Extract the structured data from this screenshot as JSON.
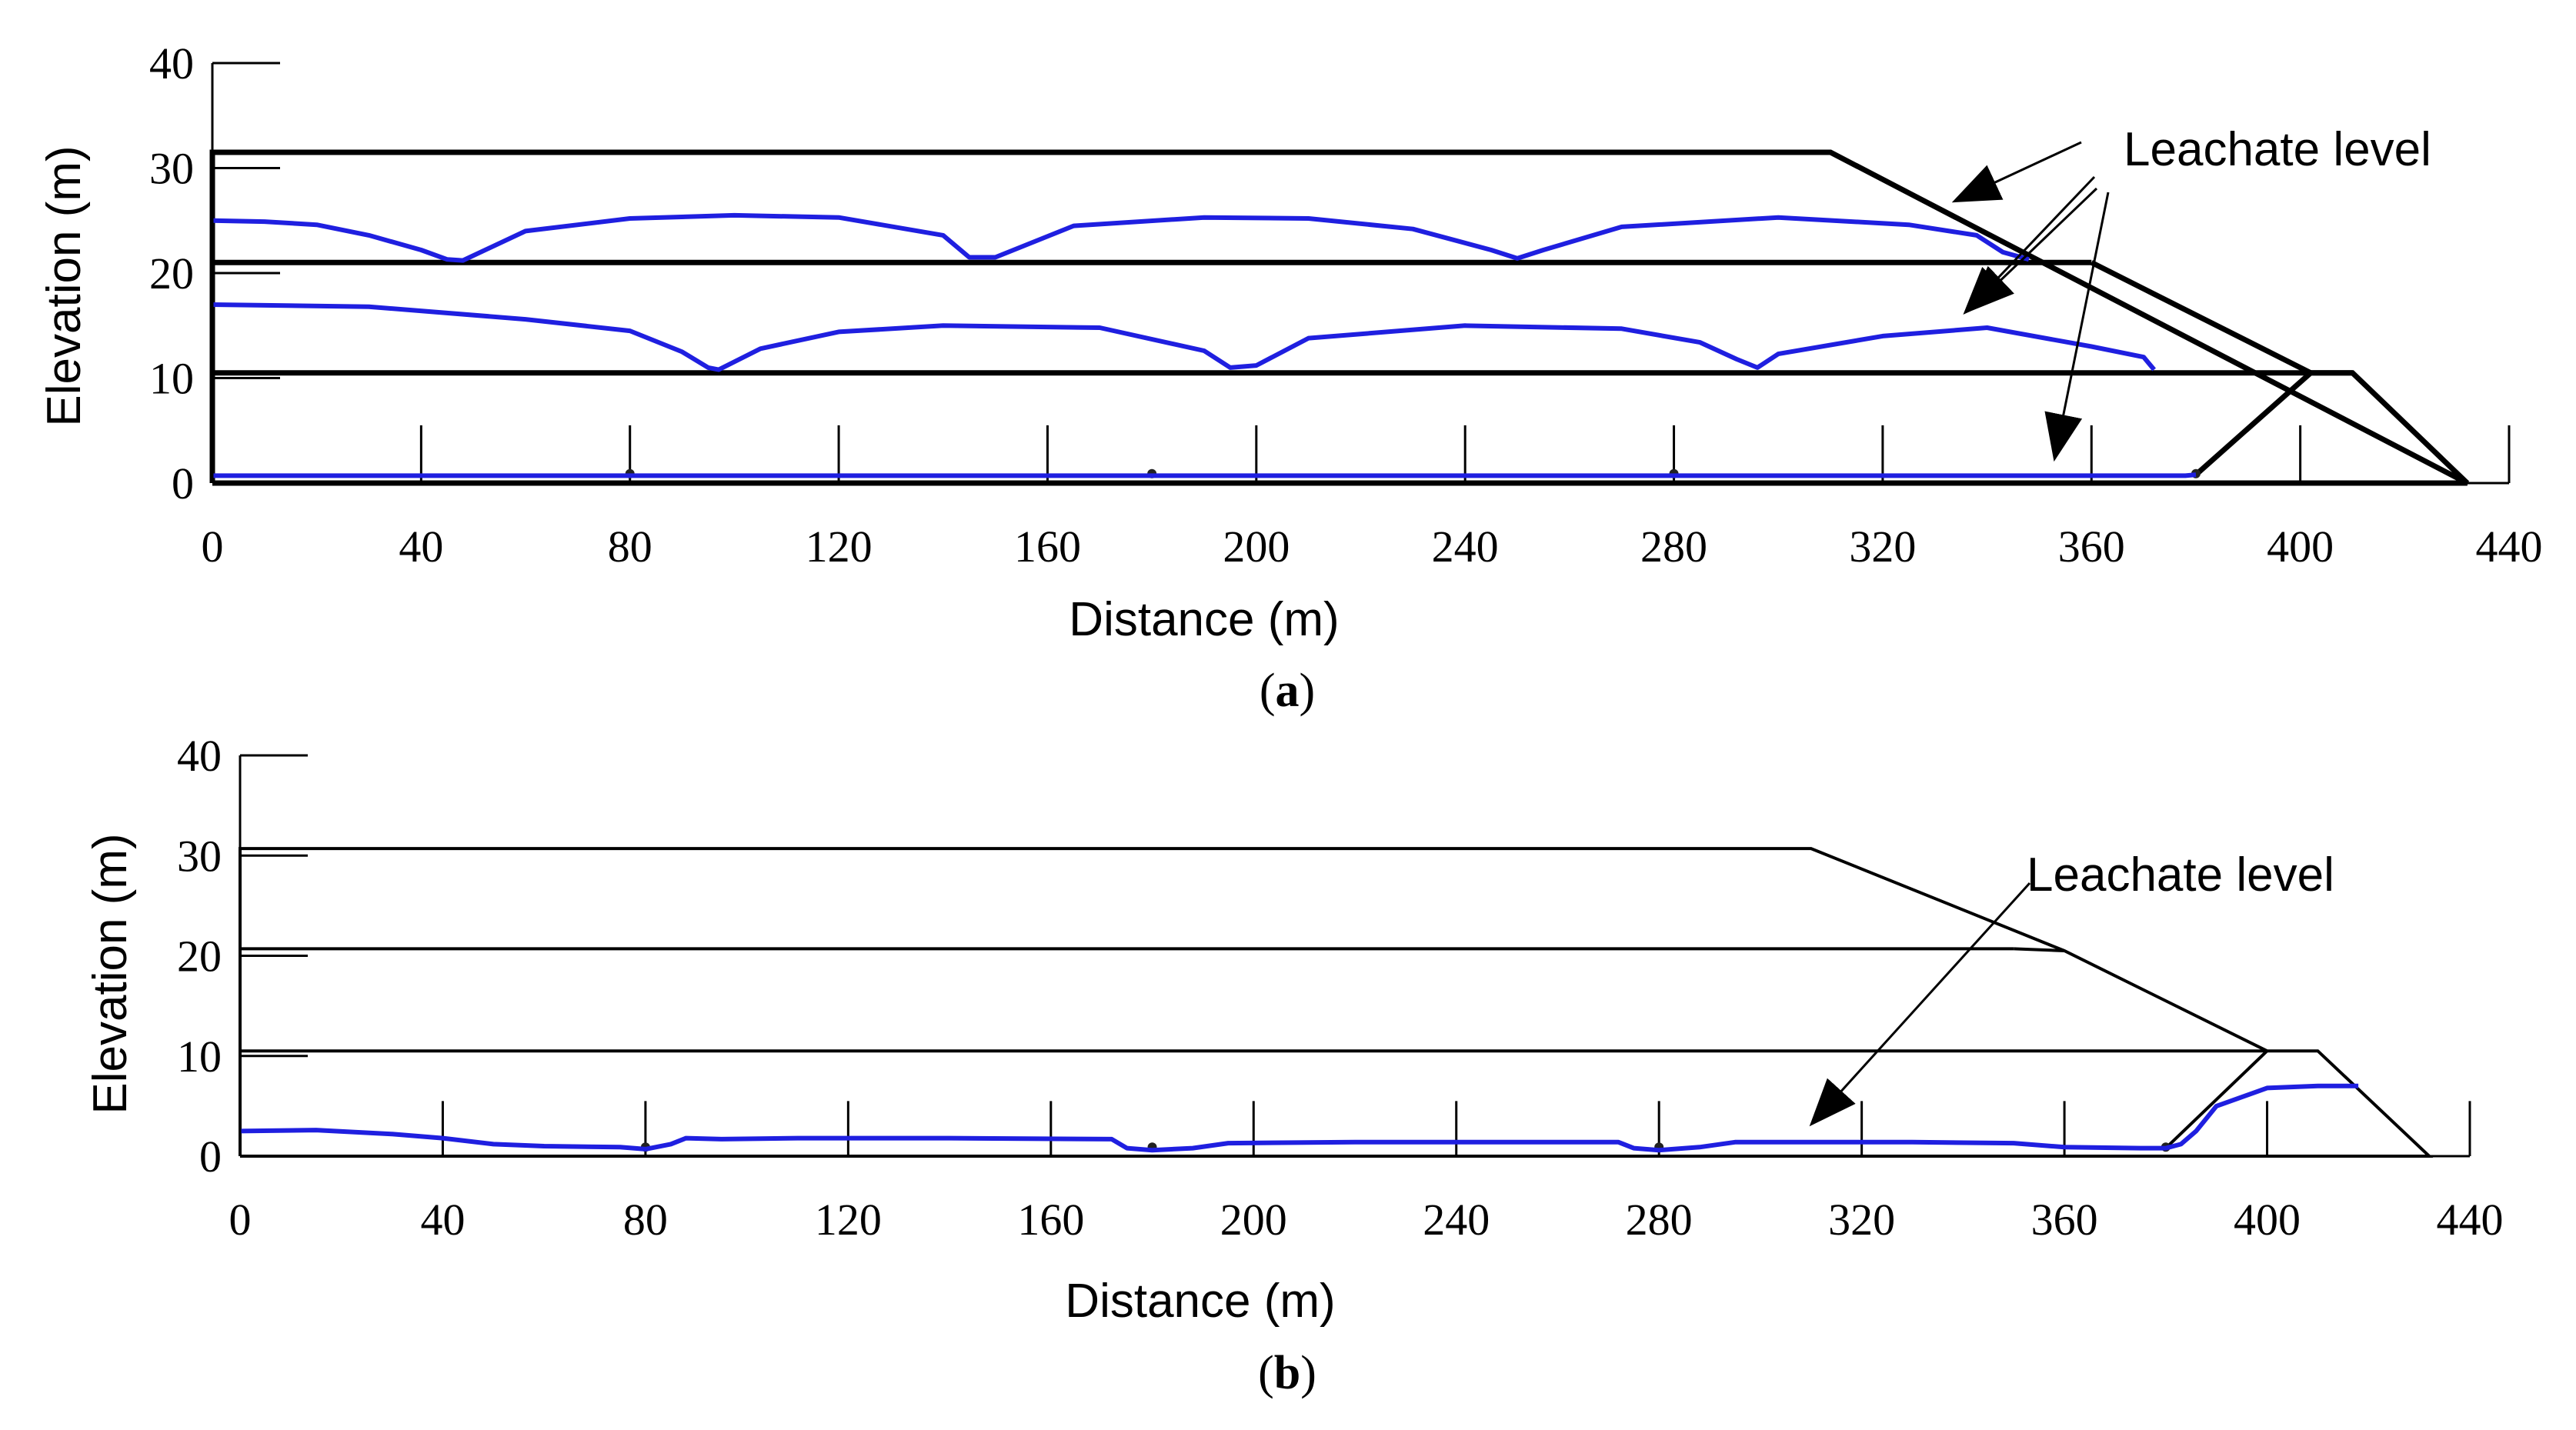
{
  "colors": {
    "axis": "#000000",
    "leachate": "#1f1fe0",
    "geometry": "#000000"
  },
  "chart_data": [
    {
      "type": "line",
      "panel": "a",
      "caption_open": "(",
      "caption_label": "a",
      "caption_close": ")",
      "xlabel": "Distance (m)",
      "ylabel": "Elevation (m)",
      "xlim": [
        0,
        440
      ],
      "ylim": [
        0,
        40
      ],
      "xticks": [
        0,
        40,
        80,
        120,
        160,
        200,
        240,
        280,
        320,
        360,
        400,
        440
      ],
      "yticks": [
        0,
        10,
        20,
        30,
        40
      ],
      "annotation": "Leachate level",
      "outline": {
        "x": [
          0,
          0,
          310,
          432,
          0
        ],
        "y": [
          0,
          31.5,
          31.5,
          0,
          0
        ]
      },
      "layer_lines": [
        {
          "name": "lift top 1",
          "x": [
            0,
            410
          ],
          "y": [
            10.5,
            10.5
          ]
        },
        {
          "name": "lift top 2",
          "x": [
            0,
            360
          ],
          "y": [
            21,
            21
          ]
        }
      ],
      "slopes": [
        {
          "name": "upper slope",
          "x": [
            360,
            402
          ],
          "y": [
            21,
            10.5
          ]
        },
        {
          "name": "toe berm",
          "x": [
            380,
            402,
            410,
            432
          ],
          "y": [
            0.8,
            10.5,
            10.5,
            0
          ]
        }
      ],
      "drains_x": [
        0,
        40,
        80,
        120,
        160,
        200,
        240,
        280,
        320,
        360,
        400
      ],
      "drain_height": 5.5,
      "collection_points_x": [
        80,
        180,
        280,
        380
      ],
      "series": [
        {
          "name": "leachate level lift 3",
          "x": [
            0,
            10,
            20,
            30,
            40,
            45,
            48,
            60,
            80,
            100,
            120,
            140,
            145,
            150,
            165,
            190,
            210,
            230,
            245,
            250,
            255,
            270,
            300,
            325,
            338,
            343,
            348
          ],
          "y": [
            25,
            24.9,
            24.6,
            23.6,
            22.2,
            21.3,
            21.2,
            24,
            25.2,
            25.5,
            25.3,
            23.6,
            21.5,
            21.5,
            24.5,
            25.3,
            25.2,
            24.2,
            22.2,
            21.4,
            22.2,
            24.4,
            25.3,
            24.6,
            23.6,
            22,
            21.3
          ]
        },
        {
          "name": "leachate level lift 2",
          "x": [
            0,
            30,
            60,
            80,
            90,
            95,
            97,
            105,
            120,
            140,
            170,
            190,
            195,
            200,
            210,
            240,
            270,
            285,
            292,
            296,
            300,
            320,
            340,
            360,
            370,
            372
          ],
          "y": [
            17,
            16.8,
            15.6,
            14.5,
            12.5,
            11,
            10.8,
            12.8,
            14.4,
            15,
            14.8,
            12.6,
            11,
            11.2,
            13.8,
            15,
            14.7,
            13.4,
            11.8,
            11,
            12.3,
            14,
            14.8,
            13,
            12,
            10.8
          ]
        },
        {
          "name": "leachate level lift 1",
          "x": [
            0,
            80,
            180,
            280,
            378,
            380
          ],
          "y": [
            0.7,
            0.7,
            0.7,
            0.7,
            0.7,
            0.8
          ]
        }
      ]
    },
    {
      "type": "line",
      "panel": "b",
      "caption_open": "(",
      "caption_label": "b",
      "caption_close": ")",
      "xlabel": "Distance (m)",
      "ylabel": "Elevation (m)",
      "xlim": [
        0,
        440
      ],
      "ylim": [
        0,
        40
      ],
      "xticks": [
        0,
        40,
        80,
        120,
        160,
        200,
        240,
        280,
        320,
        360,
        400,
        440
      ],
      "yticks": [
        0,
        10,
        20,
        30,
        40
      ],
      "annotation": "Leachate level",
      "outline": {
        "x": [
          0,
          0,
          310,
          360,
          400,
          410,
          432,
          0
        ],
        "y": [
          0,
          30.7,
          30.7,
          20.5,
          10.5,
          10.5,
          0,
          0
        ]
      },
      "layer_lines": [
        {
          "name": "lift top 1",
          "x": [
            0,
            400
          ],
          "y": [
            10.5,
            10.5
          ]
        },
        {
          "name": "lift top 2",
          "x": [
            0,
            350
          ],
          "y": [
            20.7,
            20.7
          ]
        }
      ],
      "slopes": [
        {
          "name": "upper slope",
          "x": [
            350,
            360
          ],
          "y": [
            20.7,
            20.5
          ]
        },
        {
          "name": "toe berm",
          "x": [
            380,
            400
          ],
          "y": [
            0.8,
            10.5
          ]
        }
      ],
      "drains_x": [
        40,
        80,
        120,
        160,
        200,
        240,
        280,
        320,
        360,
        400
      ],
      "drain_height": 5.5,
      "collection_points_x": [
        80,
        180,
        280,
        380
      ],
      "series": [
        {
          "name": "leachate level",
          "x": [
            0,
            15,
            30,
            40,
            50,
            60,
            75,
            80,
            85,
            88,
            95,
            110,
            140,
            172,
            175,
            180,
            188,
            195,
            220,
            272,
            275,
            280,
            288,
            295,
            330,
            350,
            360,
            375,
            380,
            383,
            386,
            390,
            400,
            410,
            418
          ],
          "y": [
            2.5,
            2.6,
            2.2,
            1.8,
            1.2,
            1,
            0.9,
            0.7,
            1.2,
            1.8,
            1.7,
            1.8,
            1.8,
            1.7,
            0.8,
            0.6,
            0.8,
            1.3,
            1.4,
            1.4,
            0.8,
            0.6,
            0.9,
            1.4,
            1.4,
            1.3,
            0.9,
            0.8,
            0.8,
            1.2,
            2.5,
            5,
            6.8,
            7,
            7
          ]
        }
      ]
    }
  ]
}
